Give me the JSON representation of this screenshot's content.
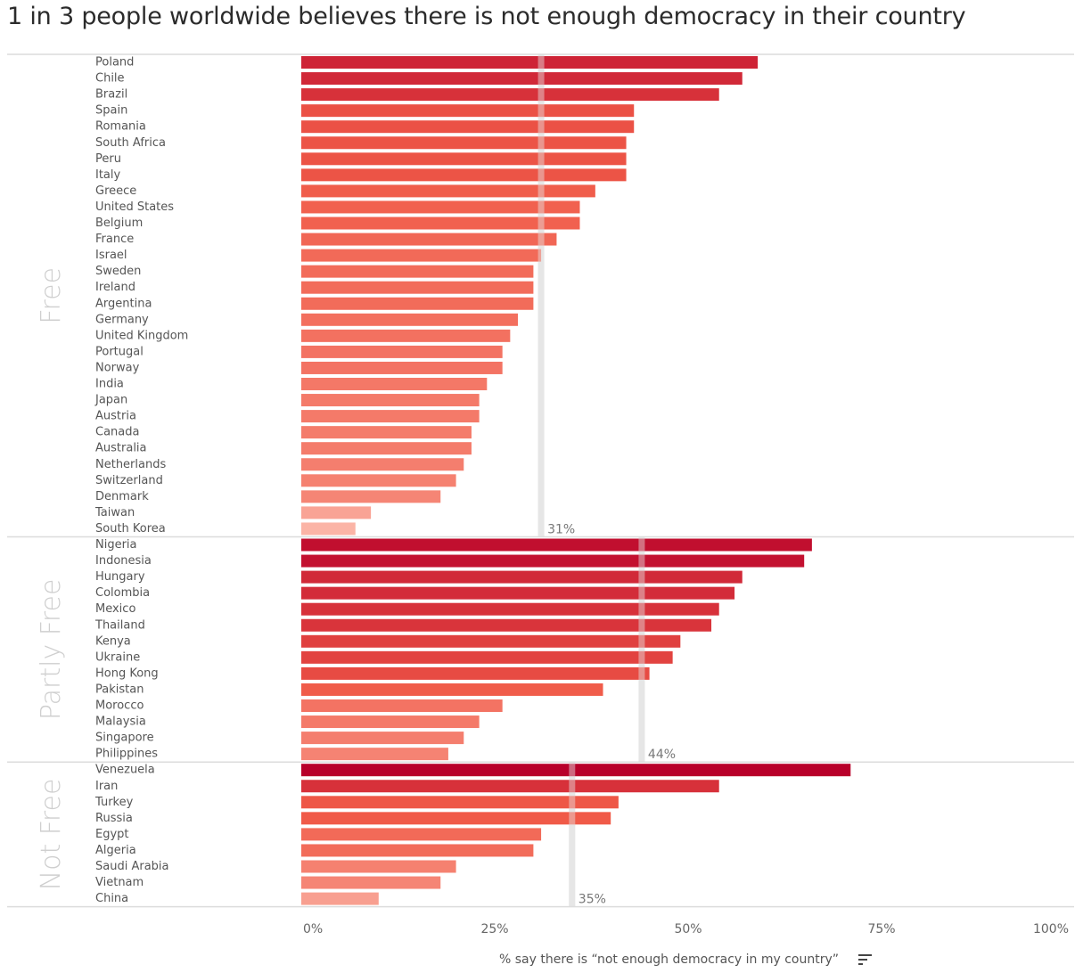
{
  "title": "1 in 3 people worldwide believes there is not enough democracy in their country",
  "chart_data": {
    "type": "bar",
    "orientation": "horizontal",
    "title": "1 in 3 people worldwide believes there is not enough democracy in their country",
    "xlabel": "% say there is “not enough democracy in my country”",
    "ylabel": "",
    "xlim": [
      0,
      100
    ],
    "x_ticks": [
      "0%",
      "25%",
      "50%",
      "75%",
      "100%"
    ],
    "x_tick_values": [
      0,
      25,
      50,
      75,
      100
    ],
    "grid": false,
    "color_scale": {
      "low": "#fbb4a6",
      "mid": "#f05a48",
      "high": "#b8002a"
    },
    "groups": [
      {
        "name": "Free",
        "average": 31,
        "average_label": "31%",
        "categories": [
          "Poland",
          "Chile",
          "Brazil",
          "Spain",
          "Romania",
          "South Africa",
          "Peru",
          "Italy",
          "Greece",
          "United States",
          "Belgium",
          "France",
          "Israel",
          "Sweden",
          "Ireland",
          "Argentina",
          "Germany",
          "United Kingdom",
          "Portugal",
          "Norway",
          "India",
          "Japan",
          "Austria",
          "Canada",
          "Australia",
          "Netherlands",
          "Switzerland",
          "Denmark",
          "Taiwan",
          "South Korea"
        ],
        "values": [
          59,
          57,
          54,
          43,
          43,
          42,
          42,
          42,
          38,
          36,
          36,
          33,
          31,
          30,
          30,
          30,
          28,
          27,
          26,
          26,
          24,
          23,
          23,
          22,
          22,
          21,
          20,
          18,
          9,
          7
        ]
      },
      {
        "name": "Partly Free",
        "average": 44,
        "average_label": "44%",
        "categories": [
          "Nigeria",
          "Indonesia",
          "Hungary",
          "Colombia",
          "Mexico",
          "Thailand",
          "Kenya",
          "Ukraine",
          "Hong Kong",
          "Pakistan",
          "Morocco",
          "Malaysia",
          "Singapore",
          "Philippines"
        ],
        "values": [
          66,
          65,
          57,
          56,
          54,
          53,
          49,
          48,
          45,
          39,
          26,
          23,
          21,
          19
        ]
      },
      {
        "name": "Not Free",
        "average": 35,
        "average_label": "35%",
        "categories": [
          "Venezuela",
          "Iran",
          "Turkey",
          "Russia",
          "Egypt",
          "Algeria",
          "Saudi Arabia",
          "Vietnam",
          "China"
        ],
        "values": [
          71,
          54,
          41,
          40,
          31,
          30,
          20,
          18,
          10
        ]
      }
    ]
  },
  "footer": {
    "axis_title": "% say there is “not enough democracy in my country”",
    "sort_icon": "sort-descending-icon"
  }
}
